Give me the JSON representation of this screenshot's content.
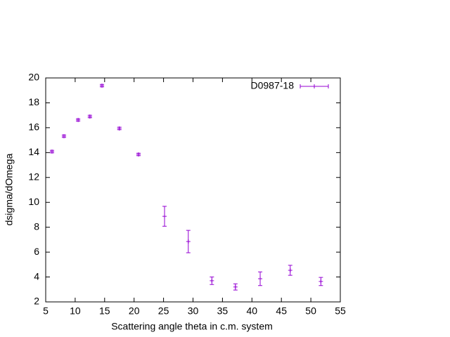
{
  "chart_data": {
    "type": "scatter",
    "xlabel": "Scattering angle theta in c.m. system",
    "ylabel": "dsigma/dOmega",
    "xlim": [
      5,
      55
    ],
    "xticks": [
      5,
      10,
      15,
      20,
      25,
      30,
      35,
      40,
      45,
      50,
      55
    ],
    "ylim": [
      2,
      20
    ],
    "yticks": [
      2,
      4,
      6,
      8,
      10,
      12,
      14,
      16,
      18,
      20
    ],
    "legend": "top-right",
    "series": [
      {
        "name": "D0987-18",
        "color": "#9400d3",
        "x": [
          6.07,
          8.1,
          10.5,
          12.5,
          14.55,
          17.5,
          20.75,
          25.17,
          29.2,
          33.2,
          37.2,
          41.4,
          46.5,
          51.7
        ],
        "values": [
          14.08,
          15.32,
          16.62,
          16.9,
          19.38,
          15.94,
          13.85,
          8.88,
          6.85,
          3.7,
          3.2,
          3.86,
          4.54,
          3.64
        ],
        "errors": [
          0.1,
          0.1,
          0.1,
          0.1,
          0.1,
          0.1,
          0.1,
          0.8,
          0.9,
          0.3,
          0.25,
          0.55,
          0.4,
          0.33
        ]
      }
    ]
  }
}
